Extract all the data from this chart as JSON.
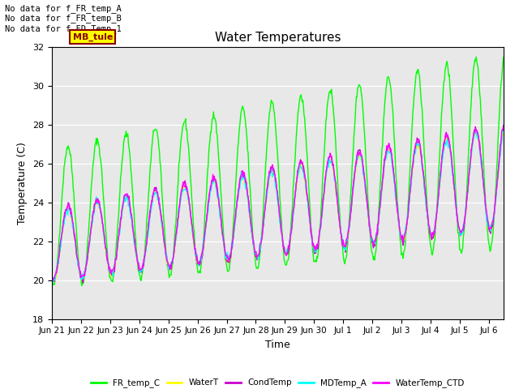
{
  "title": "Water Temperatures",
  "xlabel": "Time",
  "ylabel": "Temperature (C)",
  "ylim": [
    18,
    32
  ],
  "bg_color": "#e8e8e8",
  "fig_color": "#ffffff",
  "annotations": [
    "No data for f_FR_temp_A",
    "No data for f_FR_temp_B",
    "No data for f_FD_Temp_1"
  ],
  "annotation_box": "MB_tule",
  "xtick_labels": [
    "Jun 21",
    "Jun 22",
    "Jun 23",
    "Jun 24",
    "Jun 25",
    "Jun 26",
    "Jun 27",
    "Jun 28",
    "Jun 29",
    "Jun 30",
    "Jul 1",
    "Jul 2",
    "Jul 3",
    "Jul 4",
    "Jul 5",
    "Jul 6"
  ],
  "legend_labels": [
    "FR_temp_C",
    "WaterT",
    "CondTemp",
    "MDTemp_A",
    "WaterTemp_CTD"
  ],
  "legend_colors": [
    "#00ff00",
    "#ffff00",
    "#cc00cc",
    "#00ffff",
    "#ff00ff"
  ]
}
